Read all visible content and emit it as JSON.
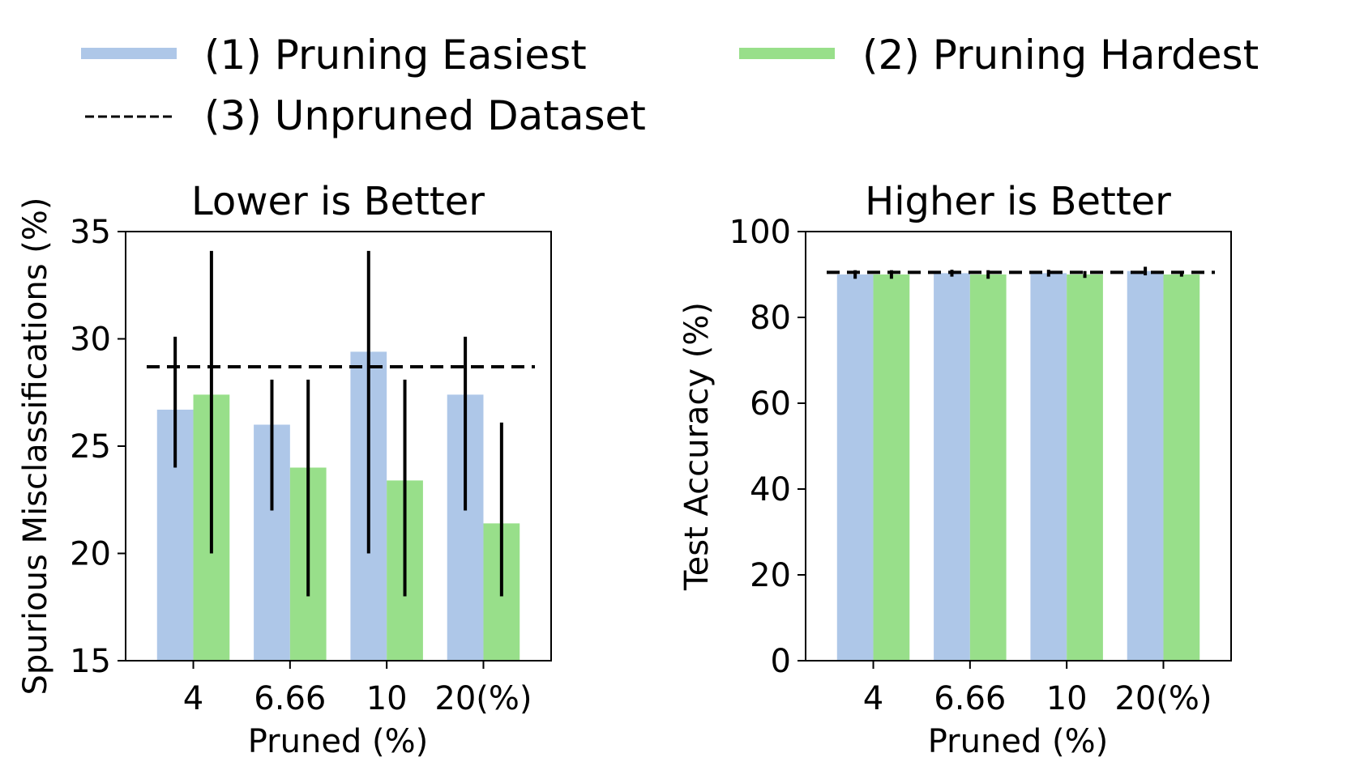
{
  "legend": {
    "items": [
      {
        "label": "(1) Pruning Easiest",
        "color": "#aec7e8",
        "style": "patch"
      },
      {
        "label": "(2) Pruning Hardest",
        "color": "#98df8a",
        "style": "patch"
      },
      {
        "label": "(3) Unpruned Dataset",
        "color": "#000000",
        "style": "dashed"
      }
    ]
  },
  "chart_data": [
    {
      "type": "bar",
      "title": "Lower is Better",
      "xlabel": "Pruned (%)",
      "ylabel": "Spurious Misclassifications  (%)",
      "categories": [
        "4",
        "6.66",
        "10",
        "20(%)"
      ],
      "ylim": [
        15,
        35
      ],
      "yticks": [
        15,
        20,
        25,
        30,
        35
      ],
      "series": [
        {
          "name": "(1) Pruning Easiest",
          "color": "#aec7e8",
          "values": [
            26.7,
            26.0,
            29.4,
            27.4
          ],
          "err_low": [
            24.0,
            22.0,
            20.0,
            22.0
          ],
          "err_high": [
            30.1,
            28.1,
            34.1,
            30.1
          ]
        },
        {
          "name": "(2) Pruning Hardest",
          "color": "#98df8a",
          "values": [
            27.4,
            24.0,
            23.4,
            21.4
          ],
          "err_low": [
            20.0,
            18.0,
            18.0,
            18.0
          ],
          "err_high": [
            34.1,
            28.1,
            28.1,
            26.1
          ]
        }
      ],
      "baseline": {
        "name": "(3) Unpruned Dataset",
        "value": 28.7
      }
    },
    {
      "type": "bar",
      "title": "Higher is Better",
      "xlabel": "Pruned (%)",
      "ylabel": "Test Accuracy  (%)",
      "categories": [
        "4",
        "6.66",
        "10",
        "20(%)"
      ],
      "ylim": [
        0,
        100
      ],
      "yticks": [
        0,
        20,
        40,
        60,
        80,
        100
      ],
      "series": [
        {
          "name": "(1) Pruning Easiest",
          "color": "#aec7e8",
          "values": [
            90.0,
            90.3,
            90.3,
            90.8
          ],
          "err_low": [
            89.0,
            89.5,
            89.5,
            89.8
          ],
          "err_high": [
            91.0,
            91.1,
            91.1,
            91.8
          ]
        },
        {
          "name": "(2) Pruning Hardest",
          "color": "#98df8a",
          "values": [
            90.0,
            90.0,
            90.0,
            90.0
          ],
          "err_low": [
            89.0,
            89.0,
            89.2,
            89.5
          ],
          "err_high": [
            91.0,
            91.0,
            90.8,
            90.5
          ]
        }
      ],
      "baseline": {
        "name": "(3) Unpruned Dataset",
        "value": 90.5
      }
    }
  ]
}
